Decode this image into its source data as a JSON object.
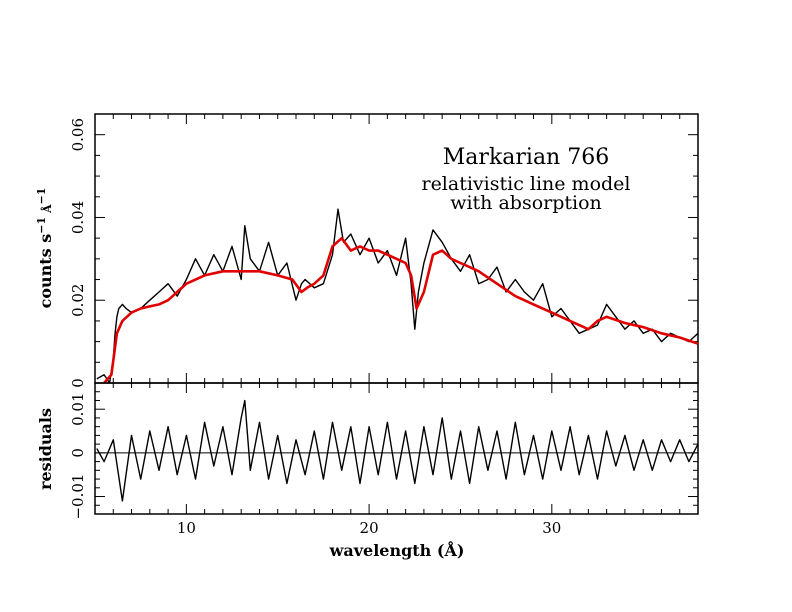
{
  "chart_data": [
    {
      "type": "line",
      "panel": "top",
      "title": "Markarian 766",
      "subtitle": [
        "relativistic line model",
        "with absorption"
      ],
      "xlabel": "wavelength (Å)",
      "ylabel": "counts s^-1 Å^-1",
      "xlim": [
        5,
        38
      ],
      "ylim": [
        0,
        0.065
      ],
      "xticks": [
        10,
        20,
        30
      ],
      "yticks": [
        0,
        0.02,
        0.04,
        0.06
      ],
      "ytick_labels": [
        "0",
        "0.02",
        "0.04",
        "0.06"
      ],
      "series": [
        {
          "role": "data",
          "color": "#000000",
          "x": [
            5.1,
            5.5,
            5.8,
            6.0,
            6.1,
            6.2,
            6.3,
            6.5,
            6.7,
            7.0,
            7.5,
            8.0,
            8.5,
            9.0,
            9.5,
            10.0,
            10.5,
            11.0,
            11.5,
            12.0,
            12.5,
            13.0,
            13.2,
            13.5,
            14.0,
            14.5,
            15.0,
            15.5,
            16.0,
            16.3,
            16.5,
            17.0,
            17.5,
            18.0,
            18.3,
            18.6,
            19.0,
            19.5,
            20.0,
            20.5,
            21.0,
            21.5,
            22.0,
            22.3,
            22.5,
            22.7,
            23.0,
            23.5,
            24.0,
            24.5,
            25.0,
            25.5,
            26.0,
            26.5,
            27.0,
            27.5,
            28.0,
            28.5,
            29.0,
            29.5,
            30.0,
            30.5,
            31.0,
            31.5,
            32.0,
            32.5,
            33.0,
            33.5,
            34.0,
            34.5,
            35.0,
            35.5,
            36.0,
            36.5,
            37.0,
            37.5,
            38.0
          ],
          "y": [
            0.001,
            0.002,
            0.0,
            0.006,
            0.012,
            0.016,
            0.018,
            0.019,
            0.018,
            0.017,
            0.018,
            0.02,
            0.022,
            0.024,
            0.021,
            0.025,
            0.03,
            0.026,
            0.031,
            0.027,
            0.033,
            0.025,
            0.038,
            0.03,
            0.027,
            0.034,
            0.026,
            0.029,
            0.02,
            0.024,
            0.025,
            0.023,
            0.024,
            0.031,
            0.042,
            0.034,
            0.036,
            0.031,
            0.035,
            0.029,
            0.032,
            0.026,
            0.035,
            0.024,
            0.013,
            0.022,
            0.029,
            0.037,
            0.034,
            0.03,
            0.027,
            0.031,
            0.024,
            0.025,
            0.028,
            0.022,
            0.025,
            0.022,
            0.02,
            0.024,
            0.016,
            0.018,
            0.015,
            0.012,
            0.013,
            0.014,
            0.019,
            0.016,
            0.013,
            0.015,
            0.012,
            0.013,
            0.01,
            0.012,
            0.011,
            0.01,
            0.012
          ]
        },
        {
          "role": "model",
          "color": "#e00000",
          "x": [
            5.5,
            5.9,
            6.2,
            6.5,
            7.0,
            7.5,
            8.0,
            8.5,
            9.0,
            9.5,
            10.0,
            11.0,
            12.0,
            13.0,
            14.0,
            15.0,
            15.8,
            16.3,
            16.6,
            17.0,
            17.5,
            18.0,
            18.5,
            19.0,
            19.5,
            20.0,
            20.5,
            21.0,
            21.5,
            22.0,
            22.3,
            22.6,
            23.0,
            23.5,
            24.0,
            24.5,
            25.0,
            25.5,
            26.0,
            27.0,
            28.0,
            29.0,
            30.0,
            31.0,
            31.5,
            32.0,
            32.5,
            33.0,
            34.0,
            35.0,
            36.0,
            37.0,
            38.0
          ],
          "y": [
            0.0,
            0.002,
            0.012,
            0.015,
            0.017,
            0.018,
            0.0185,
            0.019,
            0.02,
            0.022,
            0.024,
            0.026,
            0.027,
            0.027,
            0.027,
            0.026,
            0.025,
            0.022,
            0.023,
            0.024,
            0.026,
            0.033,
            0.035,
            0.032,
            0.033,
            0.032,
            0.032,
            0.031,
            0.03,
            0.029,
            0.026,
            0.018,
            0.022,
            0.031,
            0.032,
            0.03,
            0.029,
            0.028,
            0.027,
            0.024,
            0.021,
            0.019,
            0.017,
            0.015,
            0.014,
            0.013,
            0.015,
            0.016,
            0.0145,
            0.0135,
            0.012,
            0.011,
            0.0095
          ]
        }
      ]
    },
    {
      "type": "line",
      "panel": "bottom",
      "xlabel": "wavelength (Å)",
      "ylabel": "residuals",
      "xlim": [
        5,
        38
      ],
      "ylim": [
        -0.014,
        0.016
      ],
      "xticks": [
        10,
        20,
        30
      ],
      "xtick_labels": [
        "10",
        "20",
        "30"
      ],
      "yticks": [
        -0.01,
        0,
        0.01
      ],
      "ytick_labels": [
        "−0.01",
        "0",
        "0.01"
      ],
      "series": [
        {
          "role": "residuals",
          "color": "#000000",
          "x": [
            5.1,
            5.5,
            6.0,
            6.5,
            7.0,
            7.5,
            8.0,
            8.5,
            9.0,
            9.5,
            10.0,
            10.5,
            11.0,
            11.5,
            12.0,
            12.5,
            13.0,
            13.2,
            13.5,
            14.0,
            14.5,
            15.0,
            15.5,
            16.0,
            16.5,
            17.0,
            17.5,
            18.0,
            18.5,
            19.0,
            19.5,
            20.0,
            20.5,
            21.0,
            21.5,
            22.0,
            22.5,
            23.0,
            23.5,
            24.0,
            24.5,
            25.0,
            25.5,
            26.0,
            26.5,
            27.0,
            27.5,
            28.0,
            28.5,
            29.0,
            29.5,
            30.0,
            30.5,
            31.0,
            31.5,
            32.0,
            32.5,
            33.0,
            33.5,
            34.0,
            34.5,
            35.0,
            35.5,
            36.0,
            36.5,
            37.0,
            37.5,
            38.0
          ],
          "y": [
            0.001,
            -0.002,
            0.003,
            -0.011,
            0.004,
            -0.006,
            0.005,
            -0.004,
            0.006,
            -0.005,
            0.004,
            -0.006,
            0.007,
            -0.003,
            0.006,
            -0.005,
            0.008,
            0.012,
            -0.004,
            0.007,
            -0.006,
            0.004,
            -0.007,
            0.003,
            -0.005,
            0.005,
            -0.006,
            0.007,
            -0.004,
            0.006,
            -0.007,
            0.006,
            -0.005,
            0.007,
            -0.006,
            0.005,
            -0.007,
            0.006,
            -0.005,
            0.008,
            -0.006,
            0.005,
            -0.007,
            0.006,
            -0.004,
            0.005,
            -0.006,
            0.007,
            -0.005,
            0.004,
            -0.006,
            0.005,
            -0.004,
            0.006,
            -0.005,
            0.004,
            -0.006,
            0.005,
            -0.003,
            0.004,
            -0.004,
            0.003,
            -0.004,
            0.003,
            -0.002,
            0.003,
            -0.002,
            0.002
          ]
        }
      ]
    }
  ]
}
